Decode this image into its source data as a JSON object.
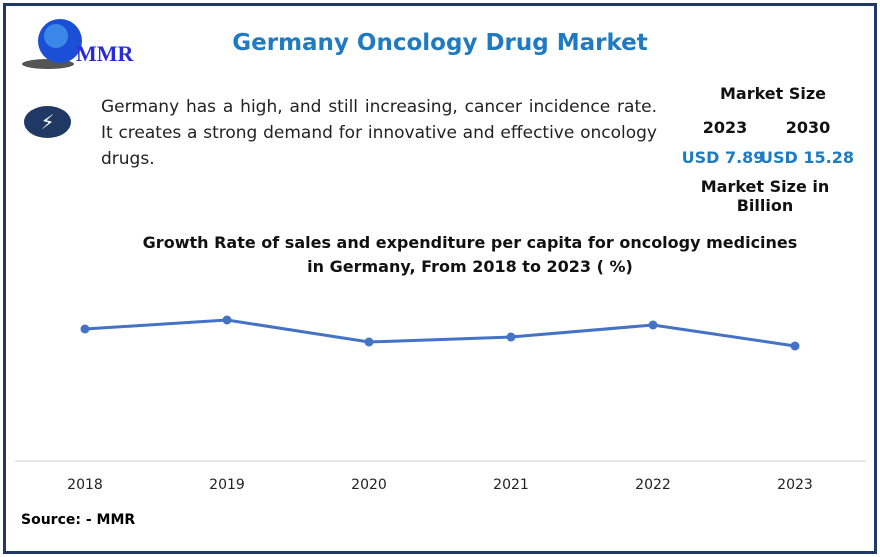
{
  "header": {
    "title": "Germany Oncology Drug Market",
    "logo_text": "MMR"
  },
  "description": "Germany has a high, and still increasing, cancer incidence rate. It creates a strong demand for innovative and effective oncology drugs.",
  "market": {
    "heading": "Market Size",
    "year1": "2023",
    "year2": "2030",
    "value1": "USD 7.89",
    "value2": "USD 15.28",
    "footer": "Market Size in Billion"
  },
  "source": "Source: - MMR",
  "colors": {
    "accent": "#1f7bc1",
    "line": "#4472c4",
    "frame": "#1f3864"
  },
  "chart_data": {
    "type": "line",
    "title": "Growth Rate of sales and expenditure per capita for oncology medicines in Germany, From 2018 to 2023 ( %)",
    "categories": [
      "2018",
      "2019",
      "2020",
      "2021",
      "2022",
      "2023"
    ],
    "series": [
      {
        "values": [
          13.2,
          14.1,
          11.9,
          12.4,
          13.6,
          11.5
        ]
      }
    ],
    "ylim": [
      0,
      23
    ],
    "grid": false,
    "y_axis_labels": false
  }
}
